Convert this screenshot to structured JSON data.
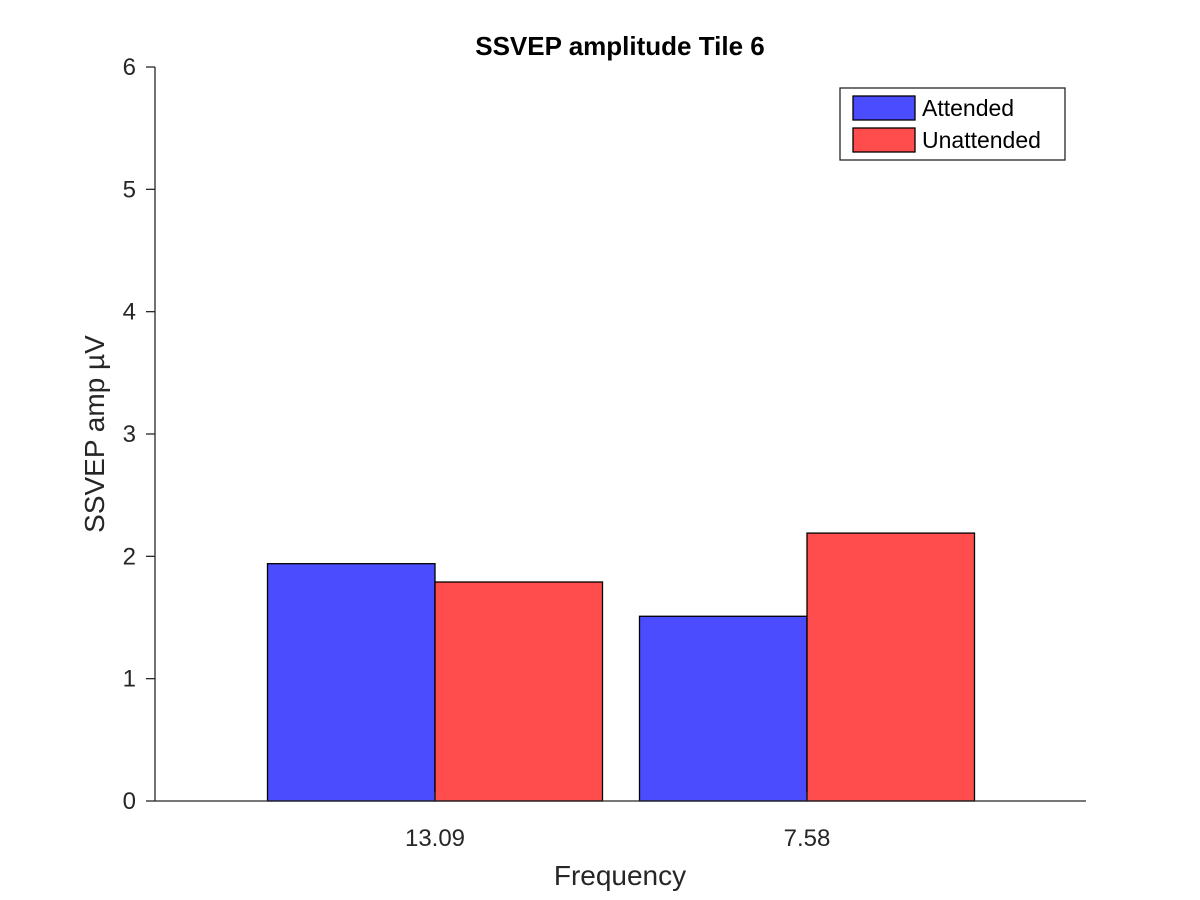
{
  "chart_data": {
    "type": "bar",
    "title": "SSVEP amplitude Tile 6",
    "xlabel": "Frequency",
    "ylabel": "SSVEP amp µV",
    "categories": [
      "13.09",
      "7.58"
    ],
    "series": [
      {
        "name": "Attended",
        "values": [
          1.94,
          1.51
        ],
        "color": "#4c4cff"
      },
      {
        "name": "Unattended",
        "values": [
          1.79,
          2.19
        ],
        "color": "#ff4c4c"
      }
    ],
    "ylim": [
      0,
      6
    ],
    "yticks": [
      "0",
      "1",
      "2",
      "3",
      "4",
      "5",
      "6"
    ],
    "grid": false,
    "legend_position": "top-right"
  }
}
